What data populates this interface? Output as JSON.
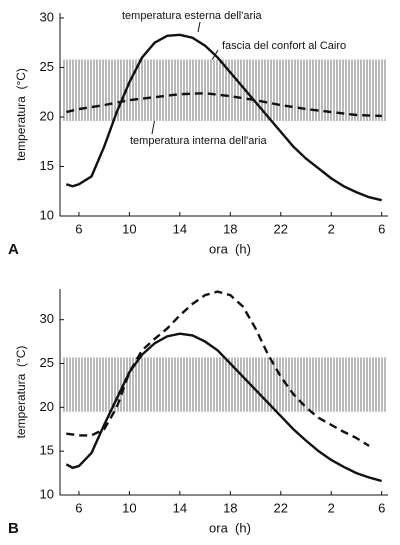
{
  "chart_data": [
    {
      "type": "line",
      "label": "A",
      "x_label": "ora  (h)",
      "y_label": "temperatura  (°C)",
      "xlim": [
        4.5,
        30.5
      ],
      "ylim": [
        10,
        30.5
      ],
      "xticks": [
        6,
        10,
        14,
        18,
        22,
        {
          "value": 26,
          "label": "2"
        },
        {
          "value": 30,
          "label": "6"
        }
      ],
      "yticks": [
        10,
        15,
        20,
        25,
        30
      ],
      "band": {
        "label": "fascia del confort al Cairo",
        "values": [
          19.6,
          25.8
        ]
      },
      "series": [
        {
          "name": "temperatura esterna dell'aria",
          "style": "solid",
          "color": "#111111",
          "x": [
            5,
            5.5,
            6,
            7,
            8,
            9,
            10,
            11,
            12,
            13,
            14,
            15,
            16,
            17,
            18,
            19,
            20,
            21,
            22,
            23,
            24,
            25,
            26,
            27,
            28,
            29,
            30
          ],
          "values": [
            13.2,
            13,
            13.2,
            14,
            17,
            20.5,
            23.5,
            26,
            27.5,
            28.2,
            28.3,
            28,
            27.2,
            26,
            24.5,
            23,
            21.5,
            20,
            18.5,
            17,
            15.8,
            14.8,
            13.8,
            13,
            12.4,
            11.9,
            11.6
          ]
        },
        {
          "name": "temperatura interna dell'aria",
          "style": "dashed",
          "color": "#111111",
          "x": [
            5,
            6,
            8,
            10,
            12,
            14,
            16,
            18,
            20,
            22,
            24,
            26,
            28,
            30
          ],
          "values": [
            20.5,
            20.8,
            21.2,
            21.7,
            22,
            22.3,
            22.4,
            22.1,
            21.7,
            21.2,
            20.8,
            20.5,
            20.2,
            20.1
          ]
        }
      ]
    },
    {
      "type": "line",
      "label": "B",
      "x_label": "ora  (h)",
      "y_label": "temperatura  (°C)",
      "xlim": [
        4.5,
        30.5
      ],
      "ylim": [
        10,
        33.5
      ],
      "xticks": [
        6,
        10,
        14,
        18,
        22,
        {
          "value": 26,
          "label": "2"
        },
        {
          "value": 30,
          "label": "6"
        }
      ],
      "yticks": [
        10,
        15,
        20,
        25,
        30
      ],
      "band": {
        "values": [
          19.5,
          25.7
        ]
      },
      "series": [
        {
          "style": "solid",
          "color": "#111111",
          "x": [
            5,
            5.5,
            6,
            7,
            8,
            9,
            10,
            11,
            12,
            13,
            14,
            15,
            16,
            17,
            18,
            19,
            20,
            21,
            22,
            23,
            24,
            25,
            26,
            27,
            28,
            29,
            30
          ],
          "values": [
            13.5,
            13.1,
            13.3,
            14.8,
            18,
            21,
            24,
            26,
            27.3,
            28.1,
            28.4,
            28.2,
            27.5,
            26.5,
            25,
            23.5,
            22,
            20.5,
            19,
            17.5,
            16.2,
            15,
            14,
            13.2,
            12.5,
            12,
            11.6
          ]
        },
        {
          "style": "dashed",
          "color": "#111111",
          "x": [
            5,
            6,
            7,
            8,
            9,
            10,
            11,
            12,
            13,
            14,
            15,
            16,
            17,
            18,
            19,
            20,
            21,
            22,
            23,
            24,
            25,
            26,
            27,
            28,
            29
          ],
          "values": [
            17,
            16.8,
            16.8,
            17.5,
            20,
            24,
            26.5,
            27.8,
            29,
            30.5,
            31.8,
            32.8,
            33.2,
            32.8,
            31.5,
            29,
            26,
            23.5,
            21.5,
            20,
            18.8,
            18,
            17.2,
            16.5,
            15.6
          ]
        }
      ]
    }
  ]
}
